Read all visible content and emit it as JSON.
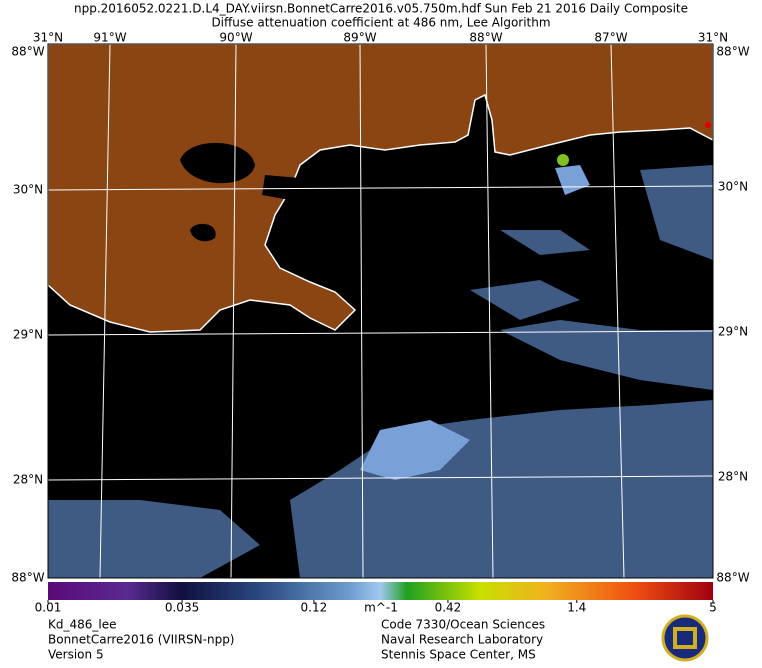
{
  "header": {
    "line1": "npp.2016052.0221.D.L4_DAY.viirsn.BonnetCarre2016.v05.750m.hdf     Sun Feb 21 2016 Daily Composite",
    "line2": "Diffuse attenuation coefficient at 486 nm, Lee Algorithm"
  },
  "map": {
    "lon_labels": [
      "91°W",
      "90°W",
      "89°W",
      "88°W",
      "87°W"
    ],
    "lat_labels": [
      "30°N",
      "29°N",
      "28°N"
    ],
    "corner_top": "31°N",
    "corner_side": "88°W",
    "corner_bottom": "88°W"
  },
  "colorbar": {
    "range": [
      0.01,
      5
    ],
    "log": true,
    "ticks": [
      0.01,
      0.035,
      0.12,
      0.42,
      1.4,
      5
    ],
    "unit": "m^-1"
  },
  "footer": {
    "left": [
      "Kd_486_lee",
      "BonnetCarre2016 (VIIRSN-npp)",
      "Version 5"
    ],
    "right": [
      "Code 7330/Ocean Sciences",
      "Naval Research Laboratory",
      "Stennis Space Center, MS"
    ]
  }
}
